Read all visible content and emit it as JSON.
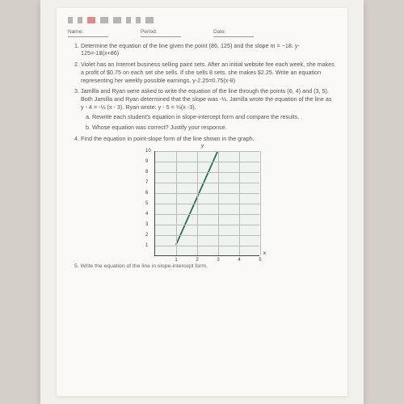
{
  "header": {
    "name_label": "Name:",
    "period_label": "Period:",
    "date_label": "Date:"
  },
  "problems": {
    "p1": "Determine the equation of the line given the point (86, 125) and the slope m = −18. y-125=-18(x+86)",
    "p2": "Violet has an Internet business selling paint sets. After an initial website fee each week, she makes a profit of $0.75 on each set she sells. If she sells 8 sets, she makes $2.25. Write an equation representing her weekly possible earnings. y-2.25=0.75(x-8)",
    "p3": "Jamilla and Ryan were asked to write the equation of the line through the points (6, 4) and (3, 5). Both Jamilla and Ryan determined that the slope was -⅓. Jamilla wrote the equation of the line as  y - 4 = -⅓ (x - 3).  Ryan wrote: y - 5 = ⅓(x -3).",
    "p3a": "Rewrite each student's equation in slope-intercept form and compare the results.",
    "p3b": "Whose equation was correct? Justify your response.",
    "p4": "Find the equation in point-slope form of the line shown in the graph.",
    "p5": "5. Write the equation of the line in slope-intercept form."
  },
  "chart": {
    "type": "line",
    "xlim": [
      0,
      5
    ],
    "ylim": [
      0,
      10
    ],
    "xtick_step": 1,
    "ytick_step": 1,
    "xlabel": "x",
    "ylabel": "y",
    "background_color": "#eef3f0",
    "grid_color": "#bbbbbb",
    "axis_color": "#444444",
    "line_color": "#2a6e4f",
    "line_width": 1.8,
    "points": [
      [
        1,
        1
      ],
      [
        3,
        10
      ]
    ],
    "tick_fontsize": 6,
    "label_fontsize": 6.5
  }
}
